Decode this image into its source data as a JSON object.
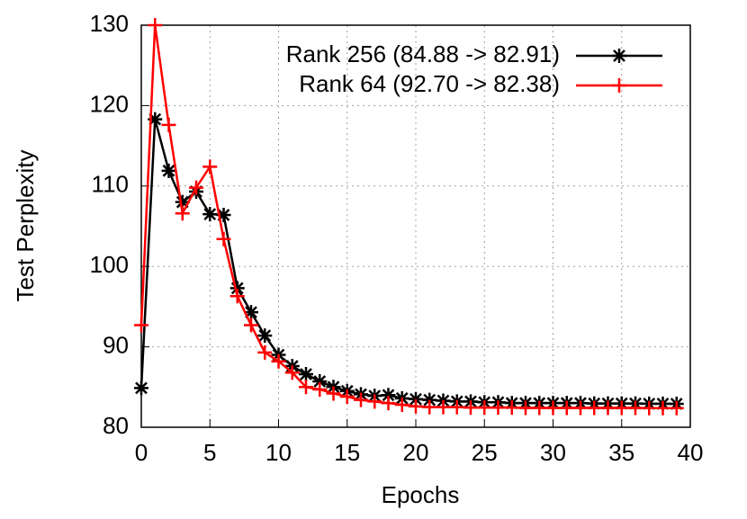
{
  "chart_data": {
    "type": "line",
    "x_label": "Epochs",
    "y_label": "Test Perplexity",
    "x": [
      0,
      1,
      2,
      3,
      4,
      5,
      6,
      7,
      8,
      9,
      10,
      11,
      12,
      13,
      14,
      15,
      16,
      17,
      18,
      19,
      20,
      21,
      22,
      23,
      24,
      25,
      26,
      27,
      28,
      29,
      30,
      31,
      32,
      33,
      34,
      35,
      36,
      37,
      38,
      39
    ],
    "series": [
      {
        "name": "Rank 256 (84.88 -> 82.91)",
        "color": "#000000",
        "marker": "asterisk",
        "values": [
          84.88,
          118.3,
          111.9,
          108.0,
          109.3,
          106.5,
          106.4,
          97.3,
          94.3,
          91.4,
          89.0,
          87.6,
          86.6,
          85.7,
          85.0,
          84.5,
          84.1,
          83.9,
          84.0,
          83.6,
          83.5,
          83.4,
          83.3,
          83.2,
          83.2,
          83.1,
          83.1,
          83.0,
          83.0,
          83.0,
          83.0,
          83.0,
          83.0,
          82.95,
          82.95,
          82.95,
          82.95,
          82.92,
          82.92,
          82.91
        ]
      },
      {
        "name": "Rank 64 (92.70 -> 82.38)",
        "color": "#ff0000",
        "marker": "plus",
        "values": [
          92.7,
          130.0,
          117.6,
          106.6,
          109.8,
          112.4,
          103.4,
          96.3,
          92.7,
          89.3,
          88.2,
          86.8,
          85.0,
          84.7,
          84.2,
          83.8,
          83.4,
          83.2,
          83.0,
          82.8,
          82.6,
          82.5,
          82.5,
          82.5,
          82.45,
          82.45,
          82.45,
          82.45,
          82.4,
          82.4,
          82.4,
          82.4,
          82.4,
          82.4,
          82.4,
          82.4,
          82.4,
          82.38,
          82.38,
          82.38
        ]
      }
    ],
    "xlim": [
      0,
      40
    ],
    "ylim": [
      80,
      130
    ],
    "xticks": [
      0,
      5,
      10,
      15,
      20,
      25,
      30,
      35,
      40
    ],
    "yticks": [
      80,
      90,
      100,
      110,
      120,
      130
    ],
    "grid": true,
    "legend": "top-right"
  }
}
